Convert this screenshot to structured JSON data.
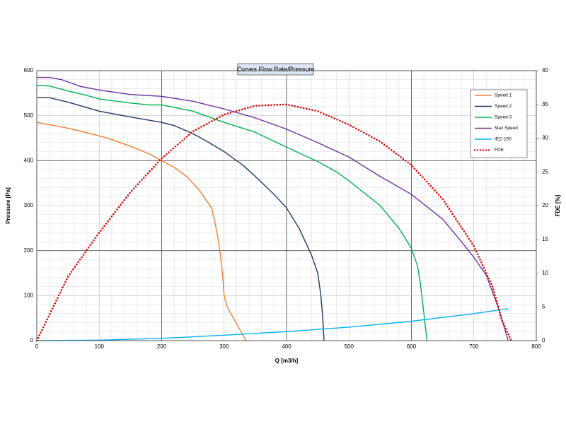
{
  "chart_data": {
    "type": "line",
    "title": "Curves Flow Rate/Pressure",
    "xlabel": "Q [m3/h]",
    "ylabel": "Pressure [Pa]",
    "y2label": "FDE [%]",
    "xlim": [
      0,
      800
    ],
    "xticks": [
      0,
      100,
      200,
      300,
      400,
      500,
      600,
      700,
      800
    ],
    "ylim": [
      0,
      600
    ],
    "yticks": [
      0,
      100,
      200,
      300,
      400,
      500,
      600
    ],
    "y2lim": [
      0,
      40
    ],
    "y2ticks": [
      0,
      5,
      10,
      15,
      20,
      25,
      30,
      35,
      40
    ],
    "y2color": "#ff0000",
    "grid": true,
    "legend": "upper right",
    "series": [
      {
        "name": "Speed 1",
        "color": "#ed7d31",
        "x": [
          0,
          20,
          50,
          80,
          100,
          120,
          150,
          180,
          200,
          220,
          240,
          260,
          270,
          280,
          285,
          290,
          295,
          298,
          300,
          305,
          315,
          325,
          335
        ],
        "values": [
          485,
          480,
          472,
          462,
          455,
          447,
          432,
          415,
          400,
          385,
          365,
          335,
          315,
          295,
          265,
          230,
          180,
          140,
          100,
          75,
          50,
          25,
          0
        ]
      },
      {
        "name": "Speed 2",
        "color": "#1f3864",
        "x": [
          0,
          20,
          50,
          100,
          150,
          200,
          220,
          250,
          270,
          300,
          330,
          350,
          380,
          400,
          420,
          440,
          450,
          455,
          458,
          460
        ],
        "values": [
          540,
          540,
          530,
          510,
          497,
          485,
          478,
          460,
          445,
          420,
          390,
          365,
          325,
          295,
          250,
          190,
          150,
          100,
          50,
          0
        ]
      },
      {
        "name": "Speed 3",
        "color": "#00b050",
        "x": [
          0,
          20,
          50,
          80,
          100,
          150,
          180,
          200,
          250,
          300,
          350,
          400,
          450,
          480,
          500,
          550,
          580,
          600,
          610,
          615,
          620,
          625
        ],
        "values": [
          567,
          566,
          555,
          545,
          537,
          528,
          524,
          524,
          510,
          485,
          463,
          430,
          398,
          375,
          355,
          300,
          250,
          205,
          165,
          120,
          60,
          0
        ]
      },
      {
        "name": "Max Speed",
        "color": "#7030a0",
        "x": [
          0,
          20,
          40,
          70,
          100,
          150,
          200,
          250,
          300,
          350,
          400,
          450,
          500,
          550,
          600,
          650,
          680,
          700,
          720,
          740,
          755
        ],
        "values": [
          585,
          585,
          580,
          565,
          557,
          547,
          543,
          532,
          515,
          495,
          470,
          440,
          408,
          365,
          325,
          270,
          220,
          185,
          145,
          70,
          0
        ]
      },
      {
        "name": "IEC-150",
        "color": "#00b0f0",
        "x": [
          0,
          100,
          200,
          300,
          400,
          500,
          600,
          700,
          755
        ],
        "values": [
          0,
          1,
          5,
          12,
          20,
          30,
          43,
          60,
          71
        ]
      },
      {
        "name": "FDE",
        "color": "#e00000",
        "axis": "y2",
        "dash": "dotted",
        "x": [
          0,
          50,
          100,
          150,
          200,
          250,
          300,
          350,
          400,
          450,
          500,
          550,
          600,
          650,
          700,
          730,
          745,
          760
        ],
        "values": [
          0,
          9.5,
          16,
          22,
          27,
          31,
          33.5,
          34.8,
          35,
          34,
          32,
          29.5,
          26,
          21,
          14,
          8,
          3,
          0
        ]
      }
    ]
  }
}
